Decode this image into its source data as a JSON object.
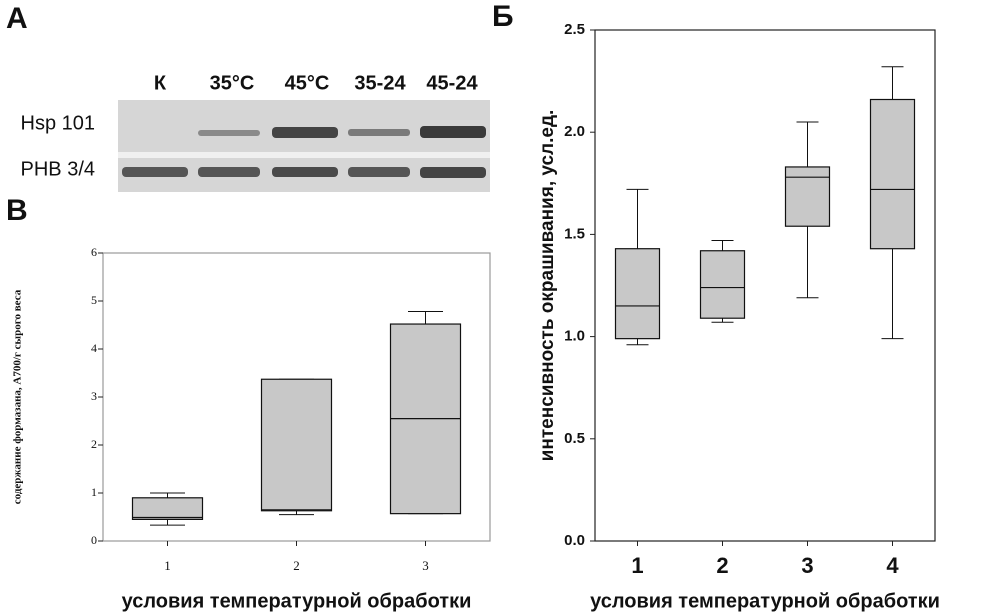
{
  "blot": {
    "panel_label": "А",
    "lanes": [
      "К",
      "35°C",
      "45°C",
      "35-24",
      "45-24"
    ],
    "rows": [
      "Hsp 101",
      "PHB 3/4"
    ]
  },
  "chart_data": [
    {
      "type": "box",
      "title": "В",
      "y_label": "содержание формазана, A700/г сырого веса",
      "x_label": "условия температурной обработки",
      "categories": [
        "1",
        "2",
        "3"
      ],
      "boxes": [
        {
          "min": 0.33,
          "q1": 0.45,
          "median": 0.49,
          "q3": 0.9,
          "max": 1.0
        },
        {
          "min": 0.55,
          "q1": 0.63,
          "median": 0.65,
          "q3": 3.37,
          "max": 3.37
        },
        {
          "min": 0.57,
          "q1": 0.57,
          "median": 2.55,
          "q3": 4.52,
          "max": 4.78
        }
      ],
      "color": "#c8c8c8",
      "ylim": [
        0,
        6
      ],
      "yticks": [
        0,
        1,
        2,
        3,
        4,
        5,
        6
      ]
    },
    {
      "type": "box",
      "title": "Б",
      "y_label": "интенсивность окрашивания, усл.ед.",
      "x_label": "условия температурной обработки",
      "categories": [
        "1",
        "2",
        "3",
        "4"
      ],
      "boxes": [
        {
          "min": 0.96,
          "q1": 0.99,
          "median": 1.15,
          "q3": 1.43,
          "max": 1.72
        },
        {
          "min": 1.07,
          "q1": 1.09,
          "median": 1.24,
          "q3": 1.42,
          "max": 1.47
        },
        {
          "min": 1.19,
          "q1": 1.54,
          "median": 1.78,
          "q3": 1.83,
          "max": 2.05
        },
        {
          "min": 0.99,
          "q1": 1.43,
          "median": 1.72,
          "q3": 2.16,
          "max": 2.32
        }
      ],
      "color": "#c8c8c8",
      "ylim": [
        0,
        2.5
      ],
      "yticks": [
        {
          "value": 0,
          "label": "0.0"
        },
        0.5,
        {
          "value": 1,
          "label": "1.0"
        },
        1.5,
        {
          "value": 2,
          "label": "2.0"
        },
        2.5
      ]
    }
  ]
}
